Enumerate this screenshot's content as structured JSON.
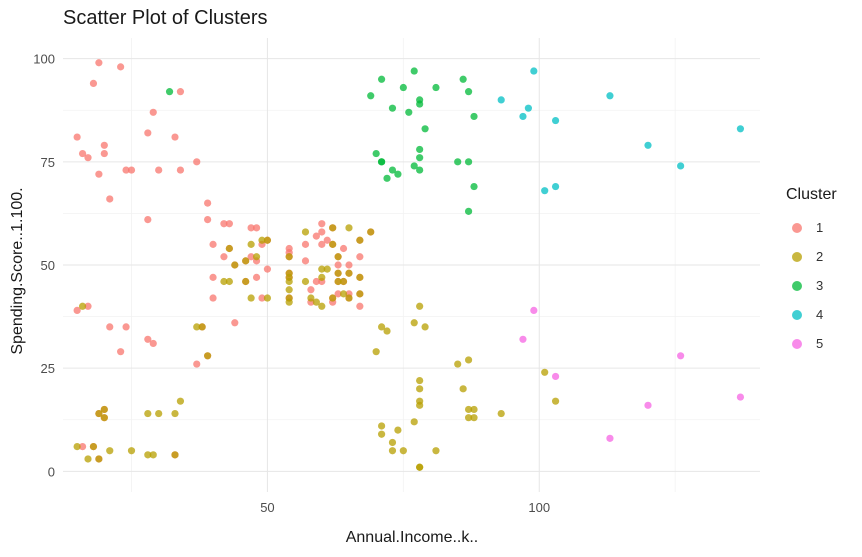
{
  "chart_data": {
    "type": "scatter",
    "title": "Scatter Plot of Clusters",
    "xlabel": "Annual.Income..k..",
    "ylabel": "Spending.Score..1.100.",
    "xlim": [
      12.4,
      140.6
    ],
    "ylim": [
      -5,
      105
    ],
    "x_ticks": [
      50,
      100
    ],
    "y_ticks": [
      0,
      25,
      50,
      75,
      100
    ],
    "grid": true,
    "legend": {
      "title": "Cluster",
      "position": "right"
    },
    "series": [
      {
        "name": "1",
        "color": "#F8766D",
        "points": [
          [
            15,
            39
          ],
          [
            15,
            81
          ],
          [
            16,
            6
          ],
          [
            16,
            77
          ],
          [
            17,
            40
          ],
          [
            17,
            76
          ],
          [
            18,
            6
          ],
          [
            18,
            94
          ],
          [
            19,
            3
          ],
          [
            19,
            72
          ],
          [
            19,
            14
          ],
          [
            19,
            99
          ],
          [
            20,
            15
          ],
          [
            20,
            77
          ],
          [
            20,
            13
          ],
          [
            20,
            79
          ],
          [
            21,
            35
          ],
          [
            21,
            66
          ],
          [
            23,
            29
          ],
          [
            23,
            98
          ],
          [
            24,
            35
          ],
          [
            24,
            73
          ],
          [
            25,
            73
          ],
          [
            28,
            82
          ],
          [
            28,
            61
          ],
          [
            28,
            32
          ],
          [
            29,
            87
          ],
          [
            29,
            31
          ],
          [
            30,
            73
          ],
          [
            33,
            81
          ],
          [
            33,
            4
          ],
          [
            34,
            73
          ],
          [
            34,
            92
          ],
          [
            37,
            26
          ],
          [
            37,
            75
          ],
          [
            38,
            35
          ],
          [
            39,
            61
          ],
          [
            39,
            28
          ],
          [
            39,
            65
          ],
          [
            40,
            55
          ],
          [
            40,
            47
          ],
          [
            40,
            42
          ],
          [
            42,
            60
          ],
          [
            42,
            52
          ],
          [
            43,
            60
          ],
          [
            43,
            54
          ],
          [
            44,
            50
          ],
          [
            44,
            36
          ],
          [
            46,
            51
          ],
          [
            46,
            46
          ],
          [
            47,
            59
          ],
          [
            47,
            52
          ],
          [
            48,
            59
          ],
          [
            48,
            47
          ],
          [
            48,
            51
          ],
          [
            49,
            55
          ],
          [
            49,
            42
          ],
          [
            50,
            49
          ],
          [
            50,
            56
          ],
          [
            54,
            47
          ],
          [
            54,
            54
          ],
          [
            54,
            53
          ],
          [
            54,
            48
          ],
          [
            54,
            52
          ],
          [
            54,
            42
          ],
          [
            57,
            51
          ],
          [
            57,
            55
          ],
          [
            58,
            41
          ],
          [
            58,
            44
          ],
          [
            59,
            57
          ],
          [
            59,
            46
          ],
          [
            60,
            58
          ],
          [
            60,
            55
          ],
          [
            60,
            60
          ],
          [
            60,
            46
          ],
          [
            61,
            56
          ],
          [
            62,
            42
          ],
          [
            62,
            59
          ],
          [
            62,
            41
          ],
          [
            62,
            55
          ],
          [
            63,
            50
          ],
          [
            63,
            46
          ],
          [
            63,
            43
          ],
          [
            63,
            48
          ],
          [
            63,
            52
          ],
          [
            64,
            46
          ],
          [
            64,
            54
          ],
          [
            65,
            42
          ],
          [
            65,
            48
          ],
          [
            65,
            50
          ],
          [
            65,
            43
          ],
          [
            67,
            56
          ],
          [
            67,
            40
          ],
          [
            67,
            52
          ],
          [
            67,
            43
          ],
          [
            67,
            47
          ],
          [
            69,
            58
          ]
        ]
      },
      {
        "name": "2",
        "color": "#B79F00",
        "points": [
          [
            15,
            6
          ],
          [
            16,
            40
          ],
          [
            17,
            3
          ],
          [
            18,
            6
          ],
          [
            19,
            14
          ],
          [
            19,
            3
          ],
          [
            20,
            15
          ],
          [
            20,
            13
          ],
          [
            21,
            5
          ],
          [
            25,
            5
          ],
          [
            28,
            14
          ],
          [
            28,
            4
          ],
          [
            29,
            4
          ],
          [
            30,
            14
          ],
          [
            33,
            4
          ],
          [
            33,
            14
          ],
          [
            34,
            17
          ],
          [
            37,
            35
          ],
          [
            38,
            35
          ],
          [
            39,
            28
          ],
          [
            42,
            46
          ],
          [
            43,
            54
          ],
          [
            43,
            46
          ],
          [
            44,
            50
          ],
          [
            46,
            51
          ],
          [
            46,
            46
          ],
          [
            47,
            55
          ],
          [
            47,
            42
          ],
          [
            48,
            52
          ],
          [
            49,
            56
          ],
          [
            50,
            42
          ],
          [
            50,
            56
          ],
          [
            54,
            47
          ],
          [
            54,
            46
          ],
          [
            54,
            52
          ],
          [
            54,
            42
          ],
          [
            54,
            48
          ],
          [
            54,
            44
          ],
          [
            54,
            41
          ],
          [
            57,
            46
          ],
          [
            57,
            58
          ],
          [
            58,
            42
          ],
          [
            59,
            41
          ],
          [
            60,
            40
          ],
          [
            60,
            49
          ],
          [
            60,
            47
          ],
          [
            61,
            49
          ],
          [
            62,
            42
          ],
          [
            62,
            59
          ],
          [
            62,
            55
          ],
          [
            63,
            48
          ],
          [
            63,
            52
          ],
          [
            63,
            46
          ],
          [
            64,
            43
          ],
          [
            64,
            46
          ],
          [
            65,
            48
          ],
          [
            65,
            42
          ],
          [
            65,
            59
          ],
          [
            67,
            43
          ],
          [
            67,
            47
          ],
          [
            67,
            56
          ],
          [
            69,
            58
          ],
          [
            70,
            29
          ],
          [
            71,
            35
          ],
          [
            71,
            11
          ],
          [
            71,
            9
          ],
          [
            72,
            34
          ],
          [
            73,
            5
          ],
          [
            73,
            7
          ],
          [
            74,
            10
          ],
          [
            75,
            5
          ],
          [
            77,
            12
          ],
          [
            77,
            36
          ],
          [
            78,
            1
          ],
          [
            78,
            22
          ],
          [
            78,
            17
          ],
          [
            78,
            20
          ],
          [
            78,
            16
          ],
          [
            78,
            1
          ],
          [
            78,
            40
          ],
          [
            79,
            35
          ],
          [
            81,
            5
          ],
          [
            85,
            26
          ],
          [
            86,
            20
          ],
          [
            87,
            27
          ],
          [
            87,
            13
          ],
          [
            87,
            15
          ],
          [
            88,
            13
          ],
          [
            88,
            15
          ],
          [
            93,
            14
          ],
          [
            101,
            24
          ],
          [
            103,
            17
          ]
        ]
      },
      {
        "name": "3",
        "color": "#00BA38",
        "points": [
          [
            32,
            92
          ],
          [
            69,
            91
          ],
          [
            70,
            77
          ],
          [
            71,
            95
          ],
          [
            71,
            75
          ],
          [
            71,
            75
          ],
          [
            72,
            71
          ],
          [
            73,
            88
          ],
          [
            73,
            73
          ],
          [
            74,
            72
          ],
          [
            75,
            93
          ],
          [
            76,
            87
          ],
          [
            77,
            97
          ],
          [
            77,
            74
          ],
          [
            78,
            90
          ],
          [
            78,
            76
          ],
          [
            78,
            89
          ],
          [
            78,
            78
          ],
          [
            78,
            73
          ],
          [
            79,
            83
          ],
          [
            81,
            93
          ],
          [
            85,
            75
          ],
          [
            86,
            95
          ],
          [
            87,
            63
          ],
          [
            87,
            75
          ],
          [
            87,
            92
          ],
          [
            88,
            86
          ],
          [
            88,
            69
          ]
        ]
      },
      {
        "name": "4",
        "color": "#00BFC4",
        "points": [
          [
            93,
            90
          ],
          [
            97,
            86
          ],
          [
            98,
            88
          ],
          [
            99,
            97
          ],
          [
            101,
            68
          ],
          [
            103,
            85
          ],
          [
            103,
            69
          ],
          [
            113,
            91
          ],
          [
            120,
            79
          ],
          [
            126,
            74
          ],
          [
            137,
            83
          ]
        ]
      },
      {
        "name": "5",
        "color": "#F564E3",
        "points": [
          [
            97,
            32
          ],
          [
            99,
            39
          ],
          [
            103,
            23
          ],
          [
            113,
            8
          ],
          [
            120,
            16
          ],
          [
            126,
            28
          ],
          [
            137,
            18
          ]
        ]
      }
    ]
  }
}
